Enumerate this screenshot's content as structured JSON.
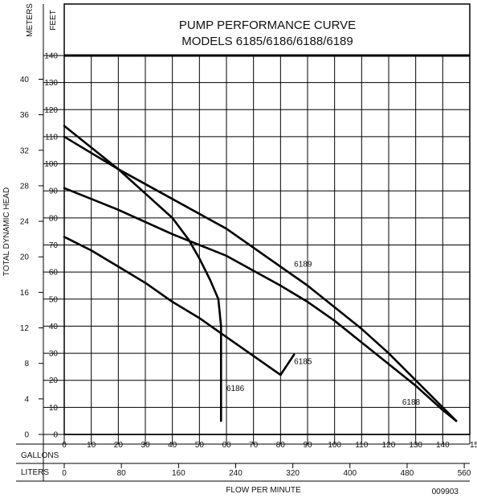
{
  "chart_data": {
    "type": "line",
    "title": "PUMP PERFORMANCE CURVE",
    "subtitle": "MODELS 6185/6186/6188/6189",
    "xlabel": "FLOW PER MINUTE",
    "ylabel": "TOTAL DYNAMIC HEAD",
    "x_unit_primary": "GALLONS",
    "x_unit_secondary": "LITERS",
    "y_unit_primary": "FEET",
    "y_unit_secondary": "METERS",
    "xlim": [
      0,
      150
    ],
    "ylim": [
      0,
      140
    ],
    "grid": true,
    "x_ticks": [
      "0",
      "10",
      "20",
      "30",
      "40",
      "50",
      "60",
      "70",
      "80",
      "90",
      "100",
      "110",
      "120",
      "130",
      "140",
      "150"
    ],
    "y_ticks": [
      "0",
      "10",
      "20",
      "30",
      "40",
      "50",
      "60",
      "70",
      "80",
      "90",
      "100",
      "110",
      "120",
      "130",
      "140"
    ],
    "liters_ticks": [
      {
        "value": 0,
        "label": "0"
      },
      {
        "value": 80,
        "label": "80"
      },
      {
        "value": 160,
        "label": "160"
      },
      {
        "value": 240,
        "label": "240"
      },
      {
        "value": 320,
        "label": "320"
      },
      {
        "value": 400,
        "label": "400"
      },
      {
        "value": 480,
        "label": "480"
      },
      {
        "value": 560,
        "label": "560"
      }
    ],
    "meters_ticks": [
      {
        "value": 0,
        "label": "0"
      },
      {
        "value": 4,
        "label": "4"
      },
      {
        "value": 8,
        "label": "8"
      },
      {
        "value": 12,
        "label": "12"
      },
      {
        "value": 16,
        "label": "16"
      },
      {
        "value": 20,
        "label": "20"
      },
      {
        "value": 24,
        "label": "24"
      },
      {
        "value": 28,
        "label": "28"
      },
      {
        "value": 32,
        "label": "32"
      },
      {
        "value": 36,
        "label": "36"
      },
      {
        "value": 40,
        "label": "40"
      }
    ],
    "series": [
      {
        "name": "6185",
        "x": [
          0,
          10,
          20,
          30,
          40,
          50,
          60,
          70,
          80,
          85
        ],
        "y": [
          73,
          68,
          62,
          56,
          49,
          43,
          36,
          29,
          22,
          29.5
        ],
        "label_at": [
          85,
          26
        ]
      },
      {
        "name": "6186",
        "x": [
          0,
          10,
          20,
          30,
          40,
          46,
          50,
          54,
          57,
          58,
          58
        ],
        "y": [
          114,
          106,
          98,
          89,
          80,
          72,
          65,
          57,
          50,
          40,
          5
        ],
        "label_at": [
          60,
          16
        ]
      },
      {
        "name": "6188",
        "x": [
          0,
          20,
          40,
          60,
          80,
          90,
          100,
          110,
          120,
          130,
          140,
          145
        ],
        "y": [
          91,
          83,
          74,
          66,
          55,
          49,
          42,
          34,
          26,
          18,
          9,
          5
        ],
        "label_at": [
          125,
          11
        ]
      },
      {
        "name": "6189",
        "x": [
          0,
          20,
          40,
          60,
          80,
          90,
          100,
          110,
          120,
          130,
          140,
          145
        ],
        "y": [
          110,
          98,
          87,
          76,
          62,
          55,
          47,
          39,
          30,
          20,
          10,
          5
        ],
        "label_at": [
          85,
          62
        ]
      }
    ],
    "footnote": "009903"
  }
}
